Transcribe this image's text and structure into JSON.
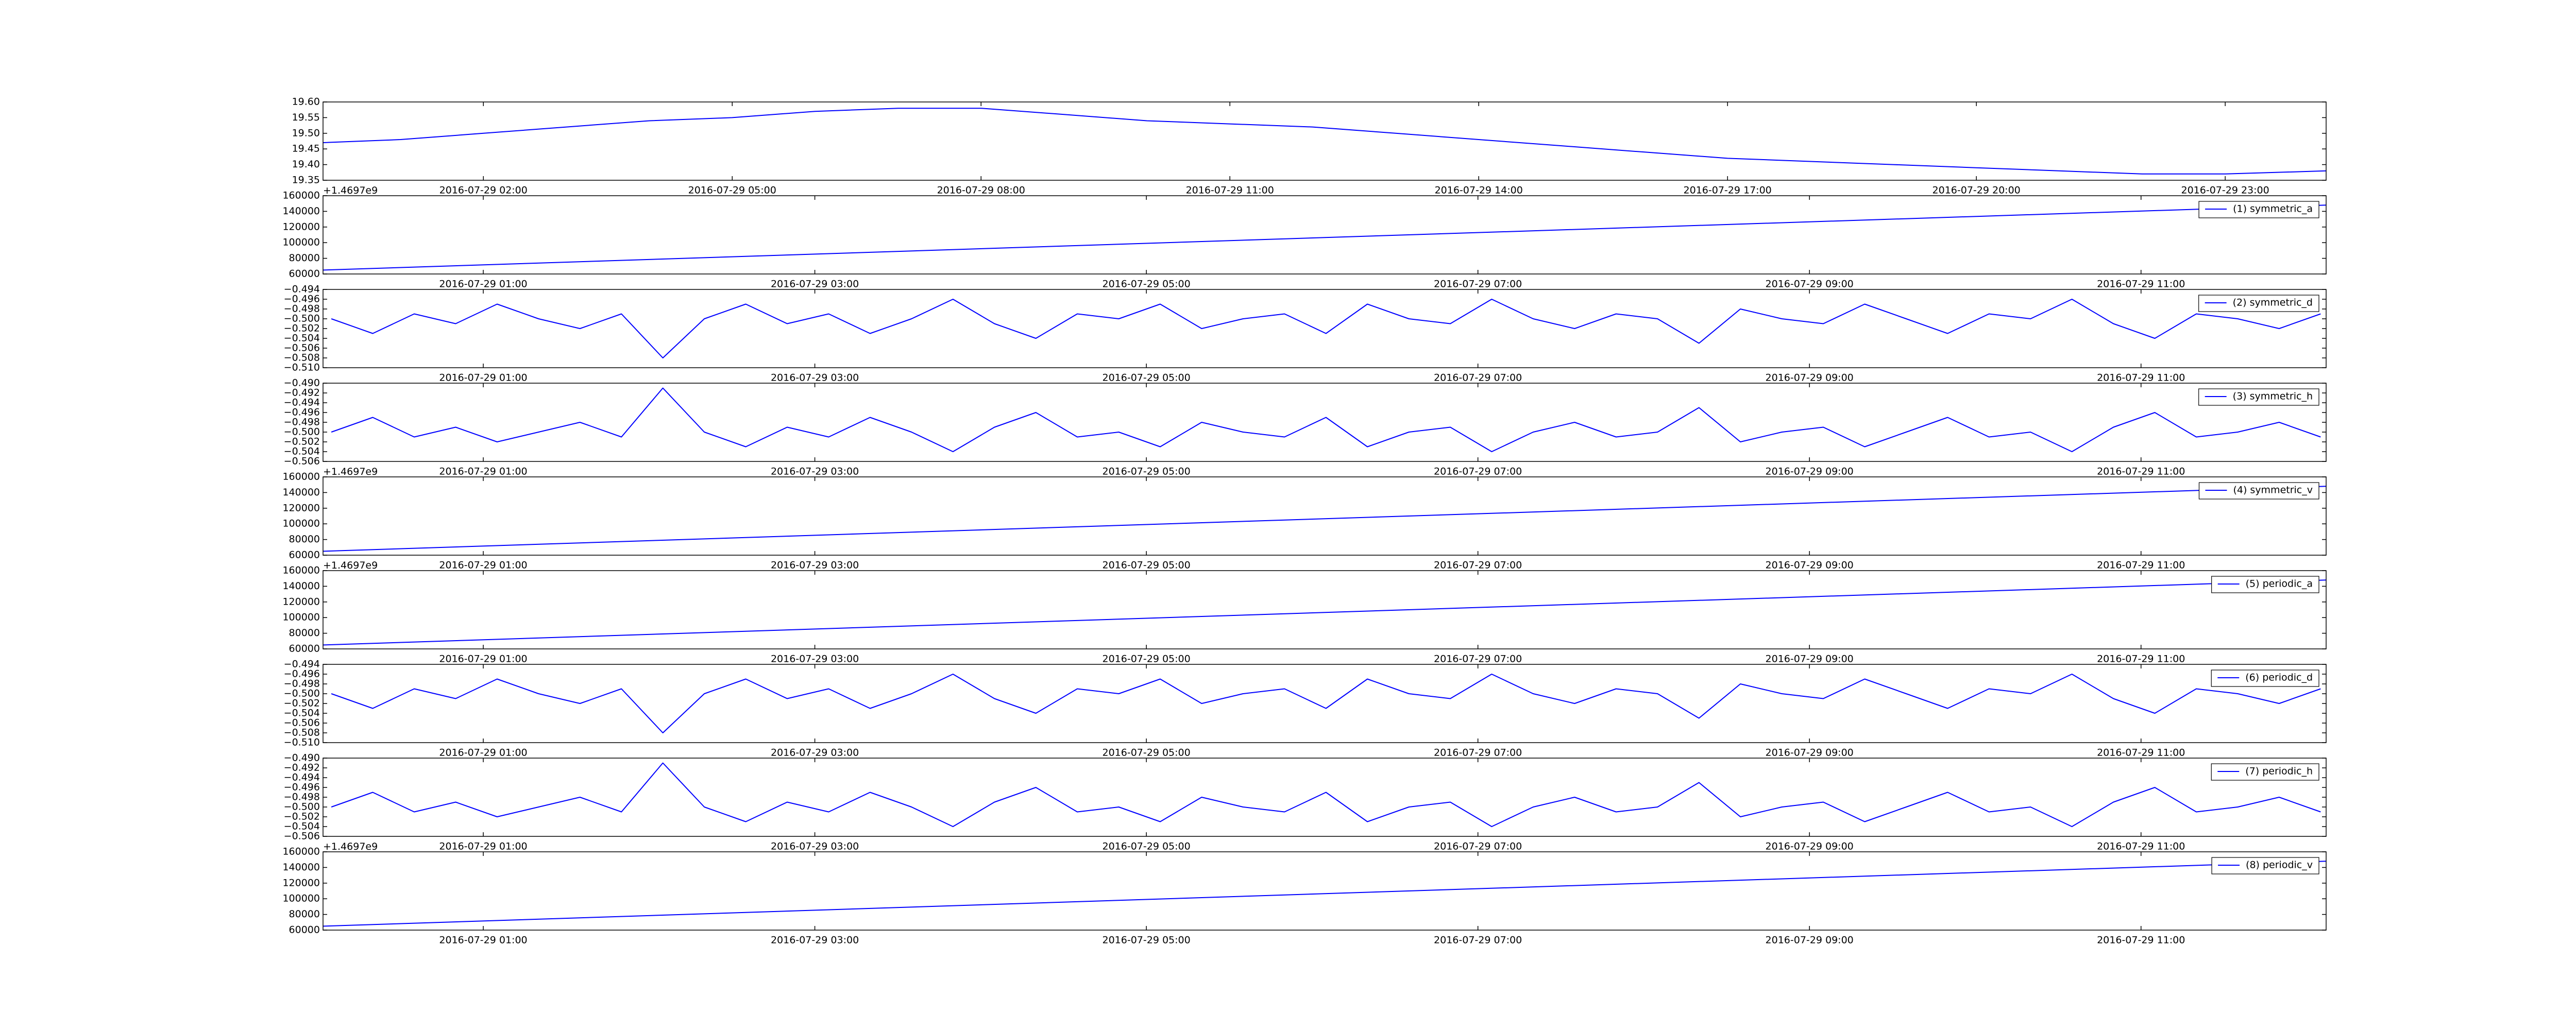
{
  "chart_data": [
    {
      "type": "line",
      "color": "#0000ff",
      "x": [
        "2016-07-29 00:04",
        "2016-07-29 01:00",
        "2016-07-29 02:00",
        "2016-07-29 03:00",
        "2016-07-29 04:00",
        "2016-07-29 05:00",
        "2016-07-29 06:00",
        "2016-07-29 07:00",
        "2016-07-29 08:00",
        "2016-07-29 09:00",
        "2016-07-29 10:00",
        "2016-07-29 11:00",
        "2016-07-29 12:00",
        "2016-07-29 13:00",
        "2016-07-29 14:00",
        "2016-07-29 15:00",
        "2016-07-29 16:00",
        "2016-07-29 17:00",
        "2016-07-29 18:00",
        "2016-07-29 19:00",
        "2016-07-29 20:00",
        "2016-07-29 21:00",
        "2016-07-29 22:00",
        "2016-07-29 23:00",
        "2016-07-30 00:13"
      ],
      "values": [
        19.47,
        19.48,
        19.5,
        19.52,
        19.54,
        19.55,
        19.57,
        19.58,
        19.58,
        19.56,
        19.54,
        19.53,
        19.52,
        19.5,
        19.48,
        19.46,
        19.44,
        19.42,
        19.41,
        19.4,
        19.39,
        19.38,
        19.37,
        19.37,
        19.38
      ],
      "xlim": [
        "2016-07-29 00:04",
        "2016-07-30 00:13"
      ],
      "xticks": [
        "2016-07-29 02:00",
        "2016-07-29 05:00",
        "2016-07-29 08:00",
        "2016-07-29 11:00",
        "2016-07-29 14:00",
        "2016-07-29 17:00",
        "2016-07-29 20:00",
        "2016-07-29 23:00"
      ],
      "ylim": [
        19.35,
        19.6
      ],
      "yticks": [
        {
          "value": 19.35,
          "label": "19.35"
        },
        {
          "value": 19.4,
          "label": "19.40"
        },
        {
          "value": 19.45,
          "label": "19.45"
        },
        {
          "value": 19.5,
          "label": "19.50"
        },
        {
          "value": 19.55,
          "label": "19.55"
        },
        {
          "value": 19.6,
          "label": "19.60"
        }
      ]
    },
    {
      "type": "line",
      "y_offset_label": "+1.4697e9",
      "legend": "upper right",
      "x": [
        "2016-07-29 00:02",
        "2016-07-29 12:07"
      ],
      "series": [
        {
          "name": "(1) symmetric_a",
          "color": "#0000ff",
          "values": [
            65000,
            148000
          ]
        }
      ],
      "xlim": [
        "2016-07-29 00:02",
        "2016-07-29 12:07"
      ],
      "xticks": [
        "2016-07-29 01:00",
        "2016-07-29 03:00",
        "2016-07-29 05:00",
        "2016-07-29 07:00",
        "2016-07-29 09:00",
        "2016-07-29 11:00"
      ],
      "ylim": [
        60000,
        160000
      ],
      "yticks": [
        60000,
        80000,
        100000,
        120000,
        140000,
        160000
      ]
    },
    {
      "type": "line",
      "legend": "upper right",
      "x": [
        "2016-07-29 00:05",
        "2016-07-29 00:20",
        "2016-07-29 00:35",
        "2016-07-29 00:50",
        "2016-07-29 01:05",
        "2016-07-29 01:20",
        "2016-07-29 01:35",
        "2016-07-29 01:50",
        "2016-07-29 02:05",
        "2016-07-29 02:20",
        "2016-07-29 02:35",
        "2016-07-29 02:50",
        "2016-07-29 03:05",
        "2016-07-29 03:20",
        "2016-07-29 03:35",
        "2016-07-29 03:50",
        "2016-07-29 04:05",
        "2016-07-29 04:20",
        "2016-07-29 04:35",
        "2016-07-29 04:50",
        "2016-07-29 05:05",
        "2016-07-29 05:20",
        "2016-07-29 05:35",
        "2016-07-29 05:50",
        "2016-07-29 06:05",
        "2016-07-29 06:20",
        "2016-07-29 06:35",
        "2016-07-29 06:50",
        "2016-07-29 07:05",
        "2016-07-29 07:20",
        "2016-07-29 07:35",
        "2016-07-29 07:50",
        "2016-07-29 08:05",
        "2016-07-29 08:20",
        "2016-07-29 08:35",
        "2016-07-29 08:50",
        "2016-07-29 09:05",
        "2016-07-29 09:20",
        "2016-07-29 09:35",
        "2016-07-29 09:50",
        "2016-07-29 10:05",
        "2016-07-29 10:20",
        "2016-07-29 10:35",
        "2016-07-29 10:50",
        "2016-07-29 11:05",
        "2016-07-29 11:20",
        "2016-07-29 11:35",
        "2016-07-29 11:50",
        "2016-07-29 12:05"
      ],
      "series": [
        {
          "name": "(2) symmetric_d",
          "color": "#0000ff",
          "values": [
            -0.5,
            -0.503,
            -0.499,
            -0.501,
            -0.497,
            -0.5,
            -0.502,
            -0.499,
            -0.508,
            -0.5,
            -0.497,
            -0.501,
            -0.499,
            -0.503,
            -0.5,
            -0.496,
            -0.501,
            -0.504,
            -0.499,
            -0.5,
            -0.497,
            -0.502,
            -0.5,
            -0.499,
            -0.503,
            -0.497,
            -0.5,
            -0.501,
            -0.496,
            -0.5,
            -0.502,
            -0.499,
            -0.5,
            -0.505,
            -0.498,
            -0.5,
            -0.501,
            -0.497,
            -0.5,
            -0.503,
            -0.499,
            -0.5,
            -0.496,
            -0.501,
            -0.504,
            -0.499,
            -0.5,
            -0.502,
            -0.499
          ]
        }
      ],
      "xlim": [
        "2016-07-29 00:02",
        "2016-07-29 12:07"
      ],
      "xticks": [
        "2016-07-29 01:00",
        "2016-07-29 03:00",
        "2016-07-29 05:00",
        "2016-07-29 07:00",
        "2016-07-29 09:00",
        "2016-07-29 11:00"
      ],
      "ylim": [
        -0.51,
        -0.494
      ],
      "yticks": [
        {
          "value": -0.51,
          "label": "−0.510"
        },
        {
          "value": -0.508,
          "label": "−0.508"
        },
        {
          "value": -0.506,
          "label": "−0.506"
        },
        {
          "value": -0.504,
          "label": "−0.504"
        },
        {
          "value": -0.502,
          "label": "−0.502"
        },
        {
          "value": -0.5,
          "label": "−0.500"
        },
        {
          "value": -0.498,
          "label": "−0.498"
        },
        {
          "value": -0.496,
          "label": "−0.496"
        },
        {
          "value": -0.494,
          "label": "−0.494"
        }
      ]
    },
    {
      "type": "line",
      "legend": "upper right",
      "x": [
        "2016-07-29 00:05",
        "2016-07-29 00:20",
        "2016-07-29 00:35",
        "2016-07-29 00:50",
        "2016-07-29 01:05",
        "2016-07-29 01:20",
        "2016-07-29 01:35",
        "2016-07-29 01:50",
        "2016-07-29 02:05",
        "2016-07-29 02:20",
        "2016-07-29 02:35",
        "2016-07-29 02:50",
        "2016-07-29 03:05",
        "2016-07-29 03:20",
        "2016-07-29 03:35",
        "2016-07-29 03:50",
        "2016-07-29 04:05",
        "2016-07-29 04:20",
        "2016-07-29 04:35",
        "2016-07-29 04:50",
        "2016-07-29 05:05",
        "2016-07-29 05:20",
        "2016-07-29 05:35",
        "2016-07-29 05:50",
        "2016-07-29 06:05",
        "2016-07-29 06:20",
        "2016-07-29 06:35",
        "2016-07-29 06:50",
        "2016-07-29 07:05",
        "2016-07-29 07:20",
        "2016-07-29 07:35",
        "2016-07-29 07:50",
        "2016-07-29 08:05",
        "2016-07-29 08:20",
        "2016-07-29 08:35",
        "2016-07-29 08:50",
        "2016-07-29 09:05",
        "2016-07-29 09:20",
        "2016-07-29 09:35",
        "2016-07-29 09:50",
        "2016-07-29 10:05",
        "2016-07-29 10:20",
        "2016-07-29 10:35",
        "2016-07-29 10:50",
        "2016-07-29 11:05",
        "2016-07-29 11:20",
        "2016-07-29 11:35",
        "2016-07-29 11:50",
        "2016-07-29 12:05"
      ],
      "series": [
        {
          "name": "(3) symmetric_h",
          "color": "#0000ff",
          "values": [
            -0.5,
            -0.497,
            -0.501,
            -0.499,
            -0.502,
            -0.5,
            -0.498,
            -0.501,
            -0.491,
            -0.5,
            -0.503,
            -0.499,
            -0.501,
            -0.497,
            -0.5,
            -0.504,
            -0.499,
            -0.496,
            -0.501,
            -0.5,
            -0.503,
            -0.498,
            -0.5,
            -0.501,
            -0.497,
            -0.503,
            -0.5,
            -0.499,
            -0.504,
            -0.5,
            -0.498,
            -0.501,
            -0.5,
            -0.495,
            -0.502,
            -0.5,
            -0.499,
            -0.503,
            -0.5,
            -0.497,
            -0.501,
            -0.5,
            -0.504,
            -0.499,
            -0.496,
            -0.501,
            -0.5,
            -0.498,
            -0.501
          ]
        }
      ],
      "xlim": [
        "2016-07-29 00:02",
        "2016-07-29 12:07"
      ],
      "xticks": [
        "2016-07-29 01:00",
        "2016-07-29 03:00",
        "2016-07-29 05:00",
        "2016-07-29 07:00",
        "2016-07-29 09:00",
        "2016-07-29 11:00"
      ],
      "ylim": [
        -0.506,
        -0.49
      ],
      "yticks": [
        {
          "value": -0.506,
          "label": "−0.506"
        },
        {
          "value": -0.504,
          "label": "−0.504"
        },
        {
          "value": -0.502,
          "label": "−0.502"
        },
        {
          "value": -0.5,
          "label": "−0.500"
        },
        {
          "value": -0.498,
          "label": "−0.498"
        },
        {
          "value": -0.496,
          "label": "−0.496"
        },
        {
          "value": -0.494,
          "label": "−0.494"
        },
        {
          "value": -0.492,
          "label": "−0.492"
        },
        {
          "value": -0.49,
          "label": "−0.490"
        }
      ]
    },
    {
      "type": "line",
      "y_offset_label": "+1.4697e9",
      "legend": "upper right",
      "x": [
        "2016-07-29 00:02",
        "2016-07-29 12:07"
      ],
      "series": [
        {
          "name": "(4) symmetric_v",
          "color": "#0000ff",
          "values": [
            65000,
            148000
          ]
        }
      ],
      "xlim": [
        "2016-07-29 00:02",
        "2016-07-29 12:07"
      ],
      "xticks": [
        "2016-07-29 01:00",
        "2016-07-29 03:00",
        "2016-07-29 05:00",
        "2016-07-29 07:00",
        "2016-07-29 09:00",
        "2016-07-29 11:00"
      ],
      "ylim": [
        60000,
        160000
      ],
      "yticks": [
        60000,
        80000,
        100000,
        120000,
        140000,
        160000
      ]
    },
    {
      "type": "line",
      "y_offset_label": "+1.4697e9",
      "legend": "upper right",
      "x": [
        "2016-07-29 00:02",
        "2016-07-29 12:07"
      ],
      "series": [
        {
          "name": "(5) periodic_a",
          "color": "#0000ff",
          "values": [
            65000,
            148000
          ]
        }
      ],
      "xlim": [
        "2016-07-29 00:02",
        "2016-07-29 12:07"
      ],
      "xticks": [
        "2016-07-29 01:00",
        "2016-07-29 03:00",
        "2016-07-29 05:00",
        "2016-07-29 07:00",
        "2016-07-29 09:00",
        "2016-07-29 11:00"
      ],
      "ylim": [
        60000,
        160000
      ],
      "yticks": [
        60000,
        80000,
        100000,
        120000,
        140000,
        160000
      ]
    },
    {
      "type": "line",
      "legend": "upper right",
      "x": [
        "2016-07-29 00:05",
        "2016-07-29 00:20",
        "2016-07-29 00:35",
        "2016-07-29 00:50",
        "2016-07-29 01:05",
        "2016-07-29 01:20",
        "2016-07-29 01:35",
        "2016-07-29 01:50",
        "2016-07-29 02:05",
        "2016-07-29 02:20",
        "2016-07-29 02:35",
        "2016-07-29 02:50",
        "2016-07-29 03:05",
        "2016-07-29 03:20",
        "2016-07-29 03:35",
        "2016-07-29 03:50",
        "2016-07-29 04:05",
        "2016-07-29 04:20",
        "2016-07-29 04:35",
        "2016-07-29 04:50",
        "2016-07-29 05:05",
        "2016-07-29 05:20",
        "2016-07-29 05:35",
        "2016-07-29 05:50",
        "2016-07-29 06:05",
        "2016-07-29 06:20",
        "2016-07-29 06:35",
        "2016-07-29 06:50",
        "2016-07-29 07:05",
        "2016-07-29 07:20",
        "2016-07-29 07:35",
        "2016-07-29 07:50",
        "2016-07-29 08:05",
        "2016-07-29 08:20",
        "2016-07-29 08:35",
        "2016-07-29 08:50",
        "2016-07-29 09:05",
        "2016-07-29 09:20",
        "2016-07-29 09:35",
        "2016-07-29 09:50",
        "2016-07-29 10:05",
        "2016-07-29 10:20",
        "2016-07-29 10:35",
        "2016-07-29 10:50",
        "2016-07-29 11:05",
        "2016-07-29 11:20",
        "2016-07-29 11:35",
        "2016-07-29 11:50",
        "2016-07-29 12:05"
      ],
      "series": [
        {
          "name": "(6) periodic_d",
          "color": "#0000ff",
          "values": [
            -0.5,
            -0.503,
            -0.499,
            -0.501,
            -0.497,
            -0.5,
            -0.502,
            -0.499,
            -0.508,
            -0.5,
            -0.497,
            -0.501,
            -0.499,
            -0.503,
            -0.5,
            -0.496,
            -0.501,
            -0.504,
            -0.499,
            -0.5,
            -0.497,
            -0.502,
            -0.5,
            -0.499,
            -0.503,
            -0.497,
            -0.5,
            -0.501,
            -0.496,
            -0.5,
            -0.502,
            -0.499,
            -0.5,
            -0.505,
            -0.498,
            -0.5,
            -0.501,
            -0.497,
            -0.5,
            -0.503,
            -0.499,
            -0.5,
            -0.496,
            -0.501,
            -0.504,
            -0.499,
            -0.5,
            -0.502,
            -0.499
          ]
        }
      ],
      "xlim": [
        "2016-07-29 00:02",
        "2016-07-29 12:07"
      ],
      "xticks": [
        "2016-07-29 01:00",
        "2016-07-29 03:00",
        "2016-07-29 05:00",
        "2016-07-29 07:00",
        "2016-07-29 09:00",
        "2016-07-29 11:00"
      ],
      "ylim": [
        -0.51,
        -0.494
      ],
      "yticks": [
        {
          "value": -0.51,
          "label": "−0.510"
        },
        {
          "value": -0.508,
          "label": "−0.508"
        },
        {
          "value": -0.506,
          "label": "−0.506"
        },
        {
          "value": -0.504,
          "label": "−0.504"
        },
        {
          "value": -0.502,
          "label": "−0.502"
        },
        {
          "value": -0.5,
          "label": "−0.500"
        },
        {
          "value": -0.498,
          "label": "−0.498"
        },
        {
          "value": -0.496,
          "label": "−0.496"
        },
        {
          "value": -0.494,
          "label": "−0.494"
        }
      ]
    },
    {
      "type": "line",
      "legend": "upper right",
      "x": [
        "2016-07-29 00:05",
        "2016-07-29 00:20",
        "2016-07-29 00:35",
        "2016-07-29 00:50",
        "2016-07-29 01:05",
        "2016-07-29 01:20",
        "2016-07-29 01:35",
        "2016-07-29 01:50",
        "2016-07-29 02:05",
        "2016-07-29 02:20",
        "2016-07-29 02:35",
        "2016-07-29 02:50",
        "2016-07-29 03:05",
        "2016-07-29 03:20",
        "2016-07-29 03:35",
        "2016-07-29 03:50",
        "2016-07-29 04:05",
        "2016-07-29 04:20",
        "2016-07-29 04:35",
        "2016-07-29 04:50",
        "2016-07-29 05:05",
        "2016-07-29 05:20",
        "2016-07-29 05:35",
        "2016-07-29 05:50",
        "2016-07-29 06:05",
        "2016-07-29 06:20",
        "2016-07-29 06:35",
        "2016-07-29 06:50",
        "2016-07-29 07:05",
        "2016-07-29 07:20",
        "2016-07-29 07:35",
        "2016-07-29 07:50",
        "2016-07-29 08:05",
        "2016-07-29 08:20",
        "2016-07-29 08:35",
        "2016-07-29 08:50",
        "2016-07-29 09:05",
        "2016-07-29 09:20",
        "2016-07-29 09:35",
        "2016-07-29 09:50",
        "2016-07-29 10:05",
        "2016-07-29 10:20",
        "2016-07-29 10:35",
        "2016-07-29 10:50",
        "2016-07-29 11:05",
        "2016-07-29 11:20",
        "2016-07-29 11:35",
        "2016-07-29 11:50",
        "2016-07-29 12:05"
      ],
      "series": [
        {
          "name": "(7) periodic_h",
          "color": "#0000ff",
          "values": [
            -0.5,
            -0.497,
            -0.501,
            -0.499,
            -0.502,
            -0.5,
            -0.498,
            -0.501,
            -0.491,
            -0.5,
            -0.503,
            -0.499,
            -0.501,
            -0.497,
            -0.5,
            -0.504,
            -0.499,
            -0.496,
            -0.501,
            -0.5,
            -0.503,
            -0.498,
            -0.5,
            -0.501,
            -0.497,
            -0.503,
            -0.5,
            -0.499,
            -0.504,
            -0.5,
            -0.498,
            -0.501,
            -0.5,
            -0.495,
            -0.502,
            -0.5,
            -0.499,
            -0.503,
            -0.5,
            -0.497,
            -0.501,
            -0.5,
            -0.504,
            -0.499,
            -0.496,
            -0.501,
            -0.5,
            -0.498,
            -0.501
          ]
        }
      ],
      "xlim": [
        "2016-07-29 00:02",
        "2016-07-29 12:07"
      ],
      "xticks": [
        "2016-07-29 01:00",
        "2016-07-29 03:00",
        "2016-07-29 05:00",
        "2016-07-29 07:00",
        "2016-07-29 09:00",
        "2016-07-29 11:00"
      ],
      "ylim": [
        -0.506,
        -0.49
      ],
      "yticks": [
        {
          "value": -0.506,
          "label": "−0.506"
        },
        {
          "value": -0.504,
          "label": "−0.504"
        },
        {
          "value": -0.502,
          "label": "−0.502"
        },
        {
          "value": -0.5,
          "label": "−0.500"
        },
        {
          "value": -0.498,
          "label": "−0.498"
        },
        {
          "value": -0.496,
          "label": "−0.496"
        },
        {
          "value": -0.494,
          "label": "−0.494"
        },
        {
          "value": -0.492,
          "label": "−0.492"
        },
        {
          "value": -0.49,
          "label": "−0.490"
        }
      ]
    },
    {
      "type": "line",
      "y_offset_label": "+1.4697e9",
      "legend": "upper right",
      "x": [
        "2016-07-29 00:02",
        "2016-07-29 12:07"
      ],
      "series": [
        {
          "name": "(8) periodic_v",
          "color": "#0000ff",
          "values": [
            65000,
            148000
          ]
        }
      ],
      "xlim": [
        "2016-07-29 00:02",
        "2016-07-29 12:07"
      ],
      "xticks": [
        "2016-07-29 01:00",
        "2016-07-29 03:00",
        "2016-07-29 05:00",
        "2016-07-29 07:00",
        "2016-07-29 09:00",
        "2016-07-29 11:00"
      ],
      "ylim": [
        60000,
        160000
      ],
      "yticks": [
        60000,
        80000,
        100000,
        120000,
        140000,
        160000
      ]
    }
  ]
}
